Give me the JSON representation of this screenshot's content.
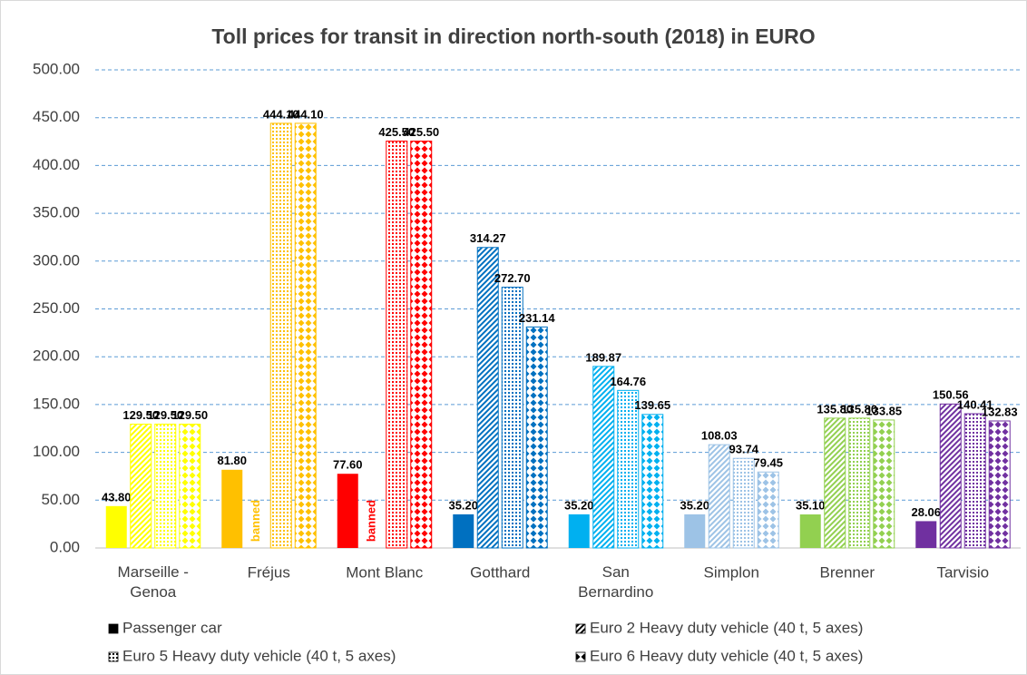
{
  "chart_data": {
    "type": "bar",
    "title": "Toll prices for transit in direction north-south (2018) in EURO",
    "categories": [
      "Marseille - Genoa",
      "Fréjus",
      "Mont Blanc",
      "Gotthard",
      "San Bernardino",
      "Simplon",
      "Brenner",
      "Tarvisio"
    ],
    "category_colors": [
      "#ffff00",
      "#ffc000",
      "#ff0000",
      "#0070c0",
      "#00b0f0",
      "#9dc3e6",
      "#92d050",
      "#7030a0"
    ],
    "series": [
      {
        "name": "Passenger car",
        "pattern": "solid",
        "values": [
          43.8,
          81.8,
          77.6,
          35.2,
          35.2,
          35.2,
          35.1,
          28.06
        ],
        "value_labels": [
          "43.80",
          "81.80",
          "77.60",
          "35.20",
          "35.20",
          "35.20",
          "35.10",
          "28.06"
        ]
      },
      {
        "name": "Euro 2 Heavy duty vehicle (40 t, 5 axes)",
        "pattern": "diagonal",
        "values": [
          129.5,
          null,
          null,
          314.27,
          189.87,
          108.03,
          135.8,
          150.56
        ],
        "value_labels": [
          "129.50",
          "banned",
          "banned",
          "314.27",
          "189.87",
          "108.03",
          "135.80",
          "150.56"
        ]
      },
      {
        "name": "Euro 5 Heavy duty vehicle (40 t, 5 axes)",
        "pattern": "dots",
        "values": [
          129.5,
          444.1,
          425.5,
          272.7,
          164.76,
          93.74,
          135.8,
          140.41
        ],
        "value_labels": [
          "129.50",
          "444.10",
          "425.50",
          "272.70",
          "164.76",
          "93.74",
          "135.80",
          "140.41"
        ]
      },
      {
        "name": "Euro 6 Heavy duty vehicle (40 t, 5 axes)",
        "pattern": "diamonds",
        "values": [
          129.5,
          444.1,
          425.5,
          231.14,
          139.65,
          79.45,
          133.85,
          132.83
        ],
        "value_labels": [
          "129.50",
          "444.10",
          "425.50",
          "231.14",
          "139.65",
          "79.45",
          "133.85",
          "132.83"
        ]
      }
    ],
    "ylim": [
      0,
      500
    ],
    "yticks": [
      {
        "value": 0,
        "label": "0.00"
      },
      {
        "value": 50,
        "label": "50.00"
      },
      {
        "value": 100,
        "label": "100.00"
      },
      {
        "value": 150,
        "label": "150.00"
      },
      {
        "value": 200,
        "label": "200.00"
      },
      {
        "value": 250,
        "label": "250.00"
      },
      {
        "value": 300,
        "label": "300.00"
      },
      {
        "value": 350,
        "label": "350.00"
      },
      {
        "value": 400,
        "label": "400.00"
      },
      {
        "value": 450,
        "label": "450.00"
      },
      {
        "value": 500,
        "label": "500.00"
      }
    ],
    "grid": true,
    "legend": "bottom"
  }
}
